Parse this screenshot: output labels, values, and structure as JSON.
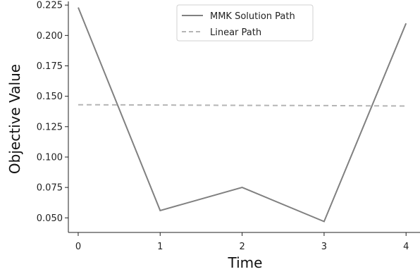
{
  "chart_data": {
    "type": "line",
    "xlabel": "Time",
    "ylabel": "Objective Value",
    "x": [
      0,
      1,
      2,
      3,
      4
    ],
    "xticks": [
      "0",
      "1",
      "2",
      "3",
      "4"
    ],
    "xlim": [
      -0.12,
      4.17
    ],
    "ylim": [
      0.038,
      0.228
    ],
    "yticks": [
      "0.050",
      "0.075",
      "0.100",
      "0.125",
      "0.150",
      "0.175",
      "0.200",
      "0.225"
    ],
    "legend_position": "upper center",
    "grid": false,
    "series": [
      {
        "name": "MMK Solution Path",
        "style": "solid",
        "color": "#808080",
        "values": [
          0.223,
          0.056,
          0.075,
          0.047,
          0.21
        ]
      },
      {
        "name": "Linear Path",
        "style": "dashed",
        "color": "#b5b5b5",
        "values": [
          0.143,
          0.1428,
          0.1425,
          0.1423,
          0.142
        ]
      }
    ]
  }
}
